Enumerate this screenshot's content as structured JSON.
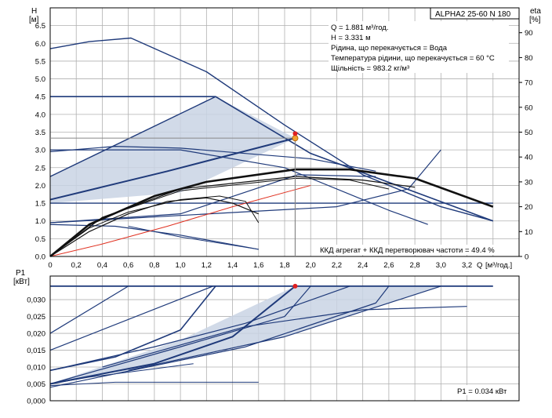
{
  "chart_data": [
    {
      "type": "line",
      "title": "ALPHA2 25-60 N 180",
      "ylabel": "H",
      "yunit": "[м]",
      "y2label": "eta",
      "y2unit": "[%]",
      "xlabel": "Q",
      "xunit": "[м³/год.]",
      "xlim": [
        0,
        3.6
      ],
      "ylim": [
        0,
        7.0
      ],
      "y2lim": [
        0,
        100
      ],
      "x_ticks": [
        "0",
        "0,2",
        "0,4",
        "0,6",
        "0,8",
        "1,0",
        "1,2",
        "1,4",
        "1,6",
        "1,8",
        "2,0",
        "2,2",
        "2,4",
        "2,6",
        "2,8",
        "3,0",
        "3,2"
      ],
      "y_ticks": [
        "0.0",
        "0.5",
        "1.0",
        "1.5",
        "2.0",
        "2.5",
        "3.0",
        "3.5",
        "4.0",
        "4.5",
        "5.0",
        "5.5",
        "6.0",
        "6.5"
      ],
      "y2_ticks": [
        "0",
        "10",
        "20",
        "30",
        "40",
        "50",
        "60",
        "70",
        "80",
        "90"
      ],
      "grid": true,
      "info_lines": [
        "Q = 1.881 м³/год.",
        "H = 3.331 м",
        "Рідина, що перекачується = Вода",
        "Температура рідини, що перекачується = 60 °C",
        "Щільність = 983.2 кг/м³"
      ],
      "efficiency_note": "ККД агрегат + ККД перетворювач частоти = 49.4 %",
      "duty_point": {
        "x": 1.881,
        "y": 3.331
      },
      "duty_eta_point": {
        "x": 1.881,
        "eta": 49.4
      },
      "shaded_region": [
        [
          0,
          1.5
        ],
        [
          1.0,
          1.8
        ],
        [
          1.881,
          3.331
        ],
        [
          1.27,
          4.5
        ],
        [
          0,
          2.25
        ]
      ],
      "series": [
        {
          "points": [
            [
              0,
              5.85
            ],
            [
              0.3,
              6.05
            ],
            [
              0.62,
              6.15
            ],
            [
              1.2,
              5.2
            ],
            [
              1.8,
              3.7
            ],
            [
              2.4,
              2.3
            ],
            [
              3.0,
              1.4
            ],
            [
              3.4,
              1.0
            ]
          ],
          "color": "#1f3a7a",
          "width": 1.4
        },
        {
          "points": [
            [
              0,
              4.5
            ],
            [
              1.27,
              4.5
            ],
            [
              2.0,
              2.9
            ],
            [
              3.4,
              1.0
            ]
          ],
          "color": "#1f3a7a",
          "width": 1.6
        },
        {
          "points": [
            [
              0,
              3.0
            ],
            [
              1.0,
              3.0
            ],
            [
              1.8,
              2.5
            ],
            [
              2.6,
              1.3
            ],
            [
              2.9,
              0.9
            ]
          ],
          "color": "#1f3a7a",
          "width": 1.2
        },
        {
          "points": [
            [
              0,
              2.25
            ],
            [
              1.27,
              4.5
            ]
          ],
          "color": "#1f3a7a",
          "width": 1.4
        },
        {
          "points": [
            [
              0,
              1.6
            ],
            [
              0.9,
              2.4
            ],
            [
              1.881,
              3.331
            ]
          ],
          "color": "#1f3a7a",
          "width": 2.0
        },
        {
          "points": [
            [
              0,
              1.5
            ],
            [
              1.0,
              1.5
            ],
            [
              3.4,
              1.5
            ]
          ],
          "color": "#1f3a7a",
          "width": 1.4
        },
        {
          "points": [
            [
              0,
              0.95
            ],
            [
              2.2,
              1.4
            ],
            [
              2.75,
              1.9
            ],
            [
              3.0,
              3.0
            ]
          ],
          "color": "#1f3a7a",
          "width": 1.2
        },
        {
          "points": [
            [
              0,
              2.95
            ],
            [
              0.5,
              3.1
            ],
            [
              1.0,
              3.05
            ],
            [
              1.5,
              2.9
            ],
            [
              2.0,
              2.75
            ],
            [
              2.5,
              2.4
            ]
          ],
          "color": "#1f3a7a",
          "width": 1.2
        },
        {
          "points": [
            [
              0,
              0.95
            ],
            [
              0.4,
              1.05
            ],
            [
              1.0,
              1.2
            ],
            [
              1.9,
              2.3
            ],
            [
              2.5,
              2.25
            ]
          ],
          "color": "#1f3a7a",
          "width": 1.2
        },
        {
          "points": [
            [
              0,
              0.9
            ],
            [
              0.5,
              0.85
            ],
            [
              1.0,
              0.6
            ],
            [
              1.6,
              0.2
            ]
          ],
          "color": "#1f3a7a",
          "width": 1.2
        },
        {
          "points": [
            [
              0.6,
              0.85
            ],
            [
              1.0,
              0.55
            ],
            [
              1.6,
              0.2
            ]
          ],
          "color": "#1f3a7a",
          "width": 1.0
        },
        {
          "points": [
            [
              0.02,
              0.02
            ],
            [
              0.4,
              0.35
            ],
            [
              0.9,
              0.85
            ],
            [
              1.4,
              1.4
            ],
            [
              1.881,
              1.881
            ],
            [
              2.0,
              2.0
            ]
          ],
          "color": "#e03020",
          "width": 1.0
        },
        {
          "points": [
            [
              0,
              0
            ],
            [
              0.3,
              0.7
            ],
            [
              0.6,
              1.2
            ],
            [
              0.9,
              1.55
            ],
            [
              1.2,
              1.65
            ],
            [
              1.4,
              1.5
            ],
            [
              1.6,
              1.2
            ]
          ],
          "color": "#111111",
          "width": 1.2,
          "axis": "eta_as_h"
        },
        {
          "points": [
            [
              0,
              0
            ],
            [
              0.3,
              0.8
            ],
            [
              0.6,
              1.25
            ],
            [
              1.0,
              1.6
            ],
            [
              1.3,
              1.7
            ],
            [
              1.5,
              1.55
            ],
            [
              1.6,
              0.95
            ]
          ],
          "color": "#111111",
          "width": 1.0
        },
        {
          "points": [
            [
              0,
              0
            ],
            [
              0.3,
              0.9
            ],
            [
              0.8,
              1.7
            ],
            [
              1.2,
              2.1
            ],
            [
              1.881,
              2.45
            ],
            [
              2.3,
              2.45
            ],
            [
              2.8,
              2.2
            ],
            [
              3.4,
              1.4
            ]
          ],
          "color": "#111111",
          "width": 2.6
        },
        {
          "points": [
            [
              0,
              0
            ],
            [
              0.4,
              1.1
            ],
            [
              1.0,
              1.9
            ],
            [
              1.881,
              2.25
            ],
            [
              2.4,
              2.15
            ],
            [
              2.8,
              1.95
            ]
          ],
          "color": "#111111",
          "width": 1.2
        },
        {
          "points": [
            [
              0,
              0
            ],
            [
              0.4,
              1.1
            ],
            [
              1.0,
              1.85
            ],
            [
              1.881,
              2.2
            ],
            [
              2.3,
              2.15
            ],
            [
              2.6,
              1.9
            ]
          ],
          "color": "#111111",
          "width": 1.0
        }
      ]
    },
    {
      "type": "line",
      "ylabel": "P1",
      "yunit": "[кВт]",
      "xlim": [
        0,
        3.6
      ],
      "ylim": [
        0,
        0.037
      ],
      "y_ticks": [
        "0,000",
        "0,005",
        "0,010",
        "0,015",
        "0,020",
        "0,025",
        "0,030"
      ],
      "grid": true,
      "power_note": "P1 = 0.034 кВт",
      "duty_point": {
        "x": 1.881,
        "y": 0.034
      },
      "shaded_region": [
        [
          0,
          0.005
        ],
        [
          1.0,
          0.018
        ],
        [
          1.881,
          0.034
        ],
        [
          3.0,
          0.034
        ],
        [
          1.8,
          0.019
        ],
        [
          0.6,
          0.009
        ]
      ],
      "series": [
        {
          "points": [
            [
              0,
              0.034
            ],
            [
              3.4,
              0.034
            ]
          ],
          "color": "#1f3a7a",
          "width": 1.8
        },
        {
          "points": [
            [
              0,
              0.02
            ],
            [
              0.6,
              0.034
            ]
          ],
          "color": "#1f3a7a",
          "width": 1.2
        },
        {
          "points": [
            [
              0,
              0.015
            ],
            [
              1.25,
              0.034
            ]
          ],
          "color": "#1f3a7a",
          "width": 1.2
        },
        {
          "points": [
            [
              0,
              0.009
            ],
            [
              0.5,
              0.013
            ],
            [
              1.0,
              0.021
            ],
            [
              1.27,
              0.034
            ]
          ],
          "color": "#1f3a7a",
          "width": 1.6
        },
        {
          "points": [
            [
              0,
              0.005
            ],
            [
              0.8,
              0.011
            ],
            [
              1.4,
              0.019
            ],
            [
              1.881,
              0.034
            ]
          ],
          "color": "#1f3a7a",
          "width": 2.0
        },
        {
          "points": [
            [
              0,
              0.005
            ],
            [
              1.0,
              0.016
            ],
            [
              1.8,
              0.025
            ],
            [
              2.0,
              0.034
            ]
          ],
          "color": "#1f3a7a",
          "width": 1.2
        },
        {
          "points": [
            [
              0,
              0.004
            ],
            [
              1.5,
              0.016
            ],
            [
              2.5,
              0.029
            ],
            [
              2.6,
              0.034
            ]
          ],
          "color": "#1f3a7a",
          "width": 1.2
        },
        {
          "points": [
            [
              0.6,
              0.009
            ],
            [
              1.8,
              0.019
            ],
            [
              3.0,
              0.034
            ]
          ],
          "color": "#1f3a7a",
          "width": 1.2
        },
        {
          "points": [
            [
              0.4,
              0.01
            ],
            [
              1.5,
              0.022
            ],
            [
              2.4,
              0.027
            ],
            [
              3.2,
              0.028
            ]
          ],
          "color": "#1f3a7a",
          "width": 1.2
        },
        {
          "points": [
            [
              0,
              0.009
            ],
            [
              0.8,
              0.016
            ],
            [
              1.5,
              0.023
            ],
            [
              2.3,
              0.034
            ]
          ],
          "color": "#1f3a7a",
          "width": 1.2
        },
        {
          "points": [
            [
              0,
              0.005
            ],
            [
              0.3,
              0.007
            ],
            [
              0.7,
              0.009
            ],
            [
              1.1,
              0.011
            ]
          ],
          "color": "#1f3a7a",
          "width": 1.0
        },
        {
          "points": [
            [
              0,
              0.0045
            ],
            [
              0.5,
              0.0055
            ],
            [
              1.0,
              0.0055
            ],
            [
              1.6,
              0.0055
            ]
          ],
          "color": "#1f3a7a",
          "width": 1.0
        }
      ]
    }
  ]
}
